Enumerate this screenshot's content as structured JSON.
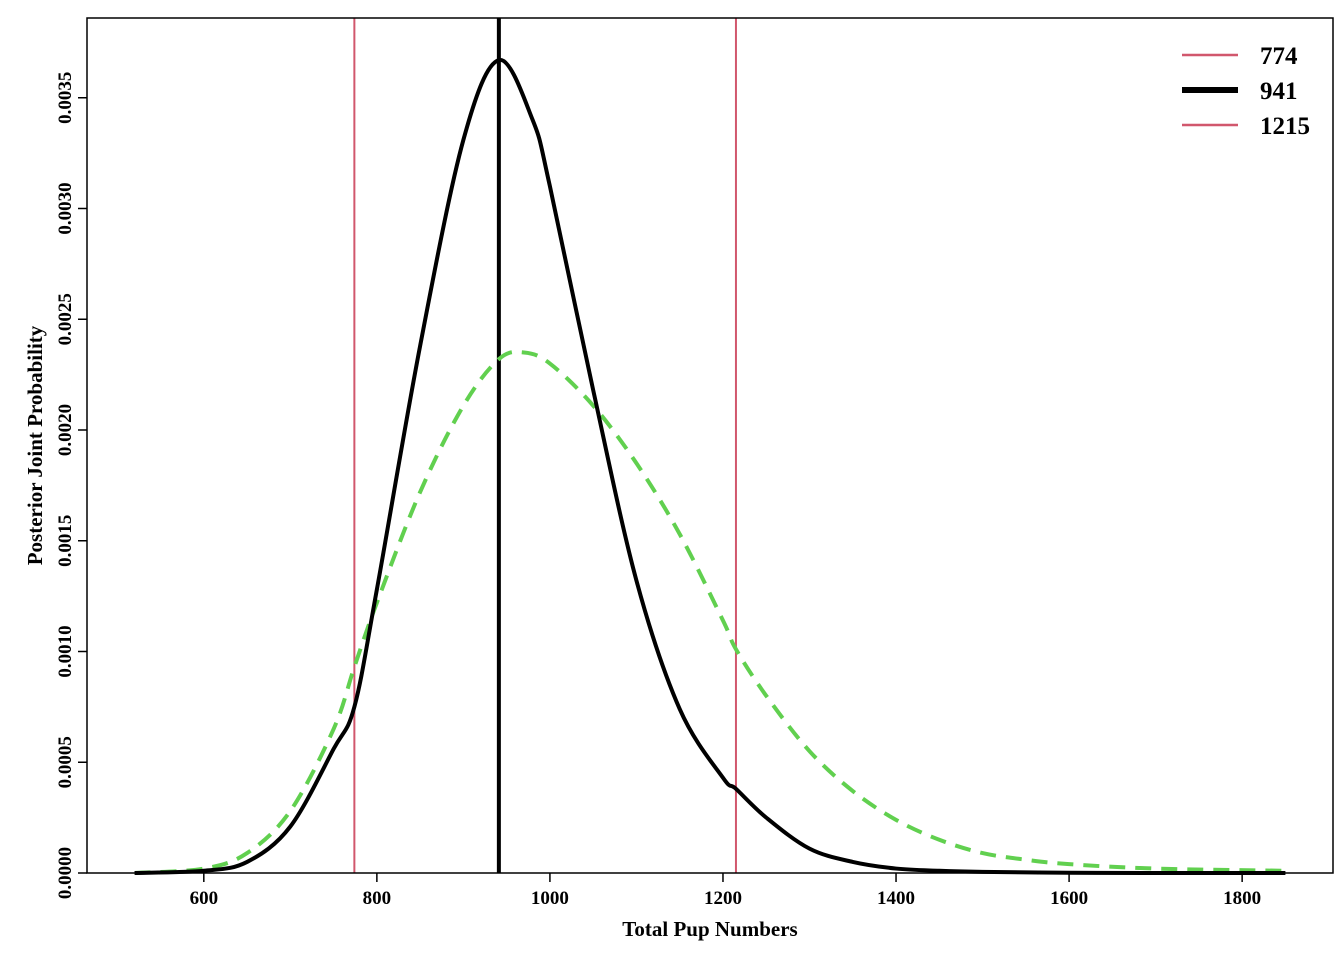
{
  "chart_data": {
    "type": "line",
    "xlabel": "Total Pup Numbers",
    "ylabel": "Posterior Joint Probability",
    "xlim": [
      465,
      1905
    ],
    "ylim": [
      0,
      0.00386
    ],
    "x_ticks": [
      600,
      800,
      1000,
      1200,
      1400,
      1600,
      1800
    ],
    "x_tick_labels": [
      "600",
      "800",
      "1000",
      "1200",
      "1400",
      "1600",
      "1800"
    ],
    "y_ticks": [
      0,
      0.0005,
      0.001,
      0.0015,
      0.002,
      0.0025,
      0.003,
      0.0035
    ],
    "y_tick_labels": [
      "0.0000",
      "0.0005",
      "0.0010",
      "0.0015",
      "0.0020",
      "0.0025",
      "0.0030",
      "0.0035"
    ],
    "grid": false,
    "legend_position": "top-right",
    "legend": [
      {
        "label": "774",
        "color": "#d1576d",
        "width": "thin"
      },
      {
        "label": "941",
        "color": "#000000",
        "width": "thick"
      },
      {
        "label": "1215",
        "color": "#d1576d",
        "width": "thin"
      }
    ],
    "vlines": [
      {
        "x": 774,
        "color": "#d1576d"
      },
      {
        "x": 941,
        "color": "#000000"
      },
      {
        "x": 1215,
        "color": "#d1576d"
      }
    ],
    "series": [
      {
        "style": "solid",
        "color": "#000000",
        "x": [
          520,
          600,
          650,
          700,
          750,
          774,
          800,
          850,
          900,
          941,
          980,
          1000,
          1050,
          1100,
          1150,
          1200,
          1215,
          1250,
          1300,
          1350,
          1400,
          1450,
          1500,
          1600,
          1700,
          1850
        ],
        "y": [
          0,
          1e-05,
          5e-05,
          0.00021,
          0.00056,
          0.00075,
          0.00128,
          0.00238,
          0.00331,
          0.00367,
          0.0034,
          0.0031,
          0.00218,
          0.00132,
          0.00074,
          0.00043,
          0.00038,
          0.00025,
          0.00011,
          5e-05,
          2e-05,
          1e-05,
          5e-06,
          1e-06,
          0,
          0
        ]
      },
      {
        "style": "dashed",
        "color": "#61d04f",
        "x": [
          520,
          600,
          650,
          700,
          750,
          774,
          800,
          850,
          900,
          941,
          970,
          1000,
          1050,
          1100,
          1150,
          1200,
          1215,
          1250,
          1300,
          1350,
          1400,
          1450,
          1500,
          1550,
          1600,
          1700,
          1850
        ],
        "y": [
          0,
          2e-05,
          9e-05,
          0.00028,
          0.00065,
          0.00093,
          0.00122,
          0.00172,
          0.00211,
          0.00232,
          0.00235,
          0.0023,
          0.00211,
          0.00185,
          0.00153,
          0.00114,
          0.00101,
          0.0008,
          0.00055,
          0.00037,
          0.00024,
          0.00015,
          9e-05,
          6e-05,
          4e-05,
          2e-05,
          1e-05
        ]
      }
    ]
  }
}
